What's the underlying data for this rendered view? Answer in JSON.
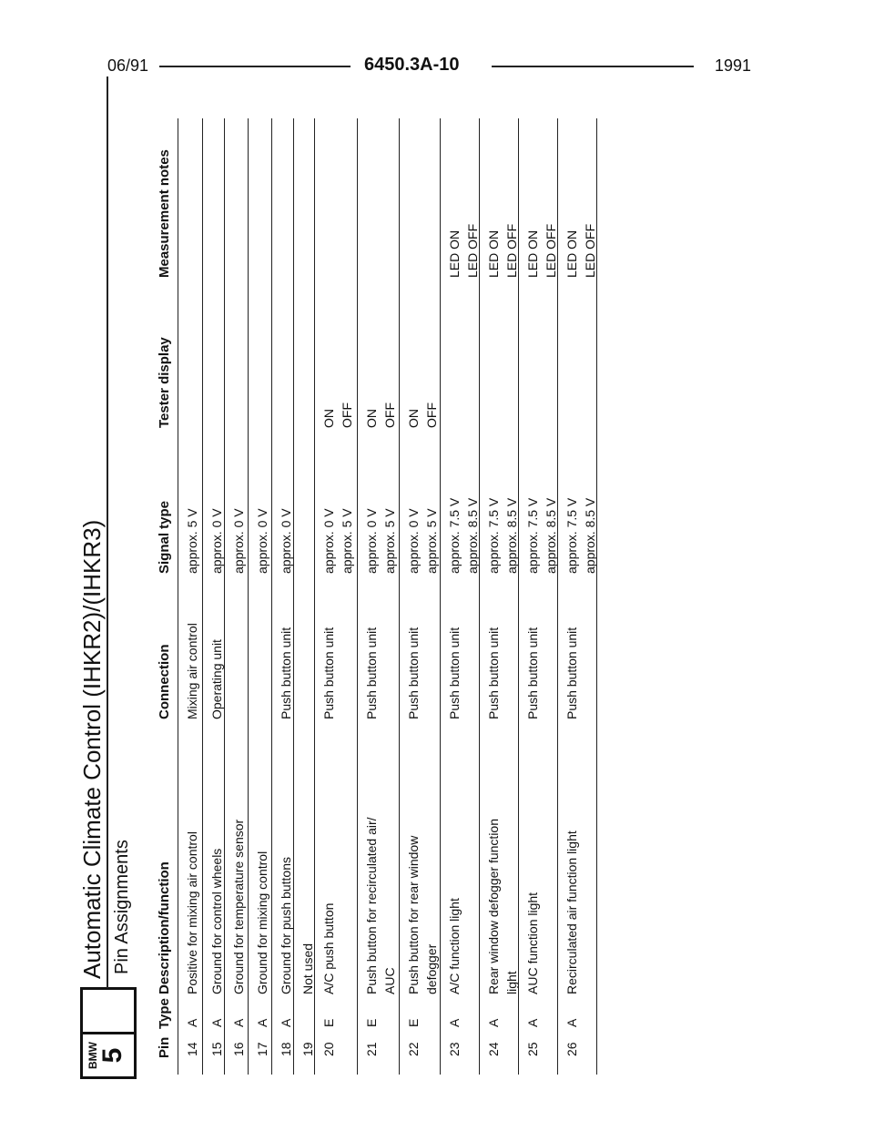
{
  "header": {
    "left": "06/91",
    "center": "6450.3A-10",
    "right": "1991"
  },
  "logo": {
    "brand": "BMW",
    "series": "5"
  },
  "title": "Automatic Climate Control (IHKR2)/(IHKR3)",
  "subtitle": "Pin Assignments",
  "columns": {
    "pin": "Pin",
    "type": "Type",
    "description": "Description/function",
    "connection": "Connection",
    "signal": "Signal type",
    "tester": "Tester display",
    "notes": "Measurement notes"
  },
  "rows": [
    {
      "pin": "14",
      "type": "A",
      "description": "Positive for mixing air control",
      "connection": "Mixing air control",
      "signal": "approx. 5 V",
      "tester": "",
      "notes": ""
    },
    {
      "pin": "15",
      "type": "A",
      "description": "Ground for control wheels",
      "connection": "Operating unit",
      "signal": "approx. 0 V",
      "tester": "",
      "notes": ""
    },
    {
      "pin": "16",
      "type": "A",
      "description": "Ground for temperature sensor",
      "connection": "",
      "signal": "approx. 0 V",
      "tester": "",
      "notes": ""
    },
    {
      "pin": "17",
      "type": "A",
      "description": "Ground for mixing control",
      "connection": "",
      "signal": "approx. 0 V",
      "tester": "",
      "notes": ""
    },
    {
      "pin": "18",
      "type": "A",
      "description": "Ground for push buttons",
      "connection": "Push button unit",
      "signal": "approx. 0 V",
      "tester": "",
      "notes": ""
    },
    {
      "pin": "19",
      "type": "",
      "description": "Not used",
      "connection": "",
      "signal": "",
      "tester": "",
      "notes": ""
    },
    {
      "pin": "20",
      "type": "E",
      "description": "A/C push button",
      "connection": "Push button unit",
      "signal": "approx. 0 V\napprox. 5 V",
      "tester": "ON\nOFF",
      "notes": ""
    },
    {
      "pin": "21",
      "type": "E",
      "description": "Push button for recirculated air/\nAUC",
      "connection": "Push button unit",
      "signal": "approx. 0 V\napprox. 5 V",
      "tester": "ON\nOFF",
      "notes": ""
    },
    {
      "pin": "22",
      "type": "E",
      "description": "Push button for rear window\ndefogger",
      "connection": "Push button unit",
      "signal": "approx. 0 V\napprox. 5 V",
      "tester": "ON\nOFF",
      "notes": ""
    },
    {
      "pin": "23",
      "type": "A",
      "description": "A/C function light",
      "connection": "Push button unit",
      "signal": "approx. 7.5 V\napprox. 8.5 V",
      "tester": "",
      "notes": "LED ON\nLED OFF"
    },
    {
      "pin": "24",
      "type": "A",
      "description": "Rear window defogger function\nlight",
      "connection": "Push button unit",
      "signal": "approx. 7.5 V\napprox. 8.5 V",
      "tester": "",
      "notes": "LED ON\nLED OFF"
    },
    {
      "pin": "25",
      "type": "A",
      "description": "AUC function light",
      "connection": "Push button unit",
      "signal": "approx. 7.5 V\napprox. 8.5 V",
      "tester": "",
      "notes": "LED ON\nLED OFF"
    },
    {
      "pin": "26",
      "type": "A",
      "description": "Recirculated air function light",
      "connection": "Push button unit",
      "signal": "approx. 7.5 V\napprox. 8.5 V",
      "tester": "",
      "notes": "LED ON\nLED OFF"
    }
  ]
}
